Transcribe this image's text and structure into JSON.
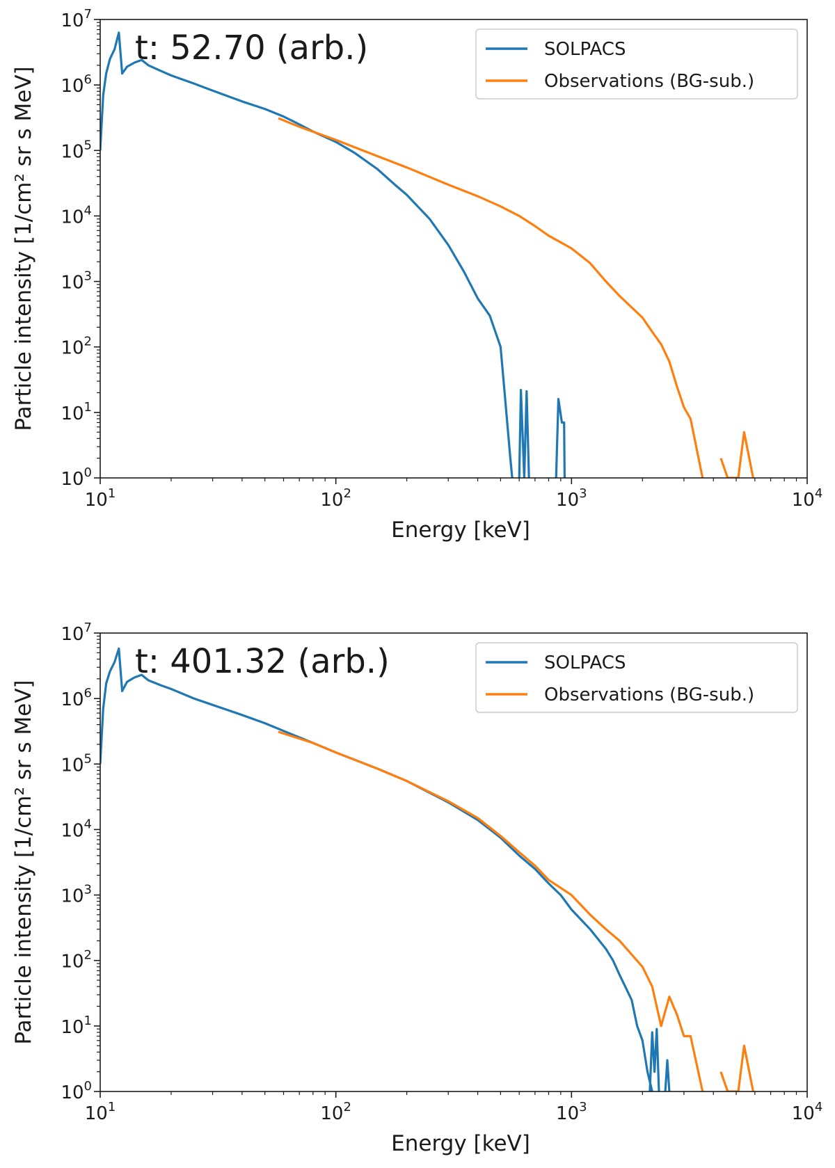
{
  "chart_data": [
    {
      "type": "line",
      "title": "",
      "annotation": "t: 52.70 (arb.)",
      "xlabel": "Energy [keV]",
      "ylabel": "Particle intensity [1/cm² sr s MeV]",
      "xscale": "log",
      "yscale": "log",
      "xlim": [
        10,
        10000
      ],
      "ylim": [
        1,
        10000000
      ],
      "x_ticks": [
        {
          "base": "10",
          "exp": "1"
        },
        {
          "base": "10",
          "exp": "2"
        },
        {
          "base": "10",
          "exp": "3"
        },
        {
          "base": "10",
          "exp": "4"
        }
      ],
      "y_ticks": [
        {
          "base": "10",
          "exp": "0"
        },
        {
          "base": "10",
          "exp": "1"
        },
        {
          "base": "10",
          "exp": "2"
        },
        {
          "base": "10",
          "exp": "3"
        },
        {
          "base": "10",
          "exp": "4"
        },
        {
          "base": "10",
          "exp": "5"
        },
        {
          "base": "10",
          "exp": "6"
        },
        {
          "base": "10",
          "exp": "7"
        }
      ],
      "grid": false,
      "legend": "top-right",
      "series": [
        {
          "name": "SOLPACS",
          "color": "#1f77b4",
          "segments": [
            [
              [
                10,
                100000
              ],
              [
                10.3,
                700000
              ],
              [
                10.6,
                1500000
              ],
              [
                11,
                2500000
              ],
              [
                11.5,
                3500000
              ],
              [
                12,
                6300000
              ],
              [
                12.4,
                1500000
              ],
              [
                13,
                1900000
              ],
              [
                14,
                2200000
              ],
              [
                15,
                2400000
              ],
              [
                16,
                2000000
              ],
              [
                18,
                1650000
              ],
              [
                20,
                1400000
              ],
              [
                25,
                1050000
              ],
              [
                30,
                820000
              ],
              [
                40,
                560000
              ],
              [
                50,
                430000
              ],
              [
                60,
                330000
              ],
              [
                70,
                250000
              ],
              [
                80,
                195000
              ],
              [
                100,
                135000
              ],
              [
                120,
                92000
              ],
              [
                150,
                52000
              ],
              [
                180,
                29000
              ],
              [
                200,
                21000
              ],
              [
                250,
                9000
              ],
              [
                300,
                3600
              ],
              [
                350,
                1400
              ],
              [
                400,
                550
              ],
              [
                450,
                300
              ],
              [
                500,
                100
              ],
              [
                520,
                20
              ],
              [
                550,
                2
              ],
              [
                560,
                1
              ]
            ],
            [
              [
                600,
                1
              ],
              [
                610,
                22
              ],
              [
                630,
                1
              ],
              [
                645,
                21
              ],
              [
                660,
                1
              ]
            ],
            [
              [
                860,
                1
              ],
              [
                880,
                16
              ],
              [
                910,
                7
              ],
              [
                930,
                7
              ],
              [
                935,
                1
              ]
            ]
          ]
        },
        {
          "name": "Observations (BG-sub.)",
          "color": "#ff7f0e",
          "segments": [
            [
              [
                57,
                310000
              ],
              [
                70,
                230000
              ],
              [
                100,
                145000
              ],
              [
                130,
                100000
              ],
              [
                200,
                55000
              ],
              [
                300,
                30000
              ],
              [
                400,
                20000
              ],
              [
                500,
                14000
              ],
              [
                600,
                10000
              ],
              [
                700,
                7000
              ],
              [
                800,
                5000
              ],
              [
                1000,
                3200
              ],
              [
                1200,
                1900
              ],
              [
                1400,
                1000
              ],
              [
                1600,
                600
              ],
              [
                2000,
                280
              ],
              [
                2200,
                170
              ],
              [
                2400,
                110
              ],
              [
                2600,
                60
              ],
              [
                2800,
                25
              ],
              [
                3000,
                12
              ],
              [
                3200,
                8
              ],
              [
                3600,
                1
              ]
            ],
            [
              [
                4300,
                2
              ],
              [
                4600,
                1
              ],
              [
                5100,
                1
              ],
              [
                5400,
                5
              ],
              [
                5900,
                1
              ]
            ]
          ]
        }
      ]
    },
    {
      "type": "line",
      "title": "",
      "annotation": "t: 401.32 (arb.)",
      "xlabel": "Energy [keV]",
      "ylabel": "Particle intensity [1/cm² sr s MeV]",
      "xscale": "log",
      "yscale": "log",
      "xlim": [
        10,
        10000
      ],
      "ylim": [
        1,
        10000000
      ],
      "x_ticks": [
        {
          "base": "10",
          "exp": "1"
        },
        {
          "base": "10",
          "exp": "2"
        },
        {
          "base": "10",
          "exp": "3"
        },
        {
          "base": "10",
          "exp": "4"
        }
      ],
      "y_ticks": [
        {
          "base": "10",
          "exp": "0"
        },
        {
          "base": "10",
          "exp": "1"
        },
        {
          "base": "10",
          "exp": "2"
        },
        {
          "base": "10",
          "exp": "3"
        },
        {
          "base": "10",
          "exp": "4"
        },
        {
          "base": "10",
          "exp": "5"
        },
        {
          "base": "10",
          "exp": "6"
        },
        {
          "base": "10",
          "exp": "7"
        }
      ],
      "grid": false,
      "legend": "top-right",
      "series": [
        {
          "name": "SOLPACS",
          "color": "#1f77b4",
          "segments": [
            [
              [
                10,
                100000
              ],
              [
                10.3,
                700000
              ],
              [
                10.6,
                1700000
              ],
              [
                11,
                2600000
              ],
              [
                11.5,
                3600000
              ],
              [
                12,
                5800000
              ],
              [
                12.4,
                1300000
              ],
              [
                13,
                1800000
              ],
              [
                14,
                2100000
              ],
              [
                15,
                2300000
              ],
              [
                16,
                1900000
              ],
              [
                18,
                1600000
              ],
              [
                20,
                1400000
              ],
              [
                25,
                1000000
              ],
              [
                30,
                800000
              ],
              [
                40,
                560000
              ],
              [
                50,
                420000
              ],
              [
                60,
                320000
              ],
              [
                80,
                210000
              ],
              [
                100,
                150000
              ],
              [
                150,
                85000
              ],
              [
                200,
                55000
              ],
              [
                300,
                26000
              ],
              [
                400,
                14000
              ],
              [
                500,
                7500
              ],
              [
                600,
                4000
              ],
              [
                700,
                2500
              ],
              [
                800,
                1500
              ],
              [
                900,
                1000
              ],
              [
                1000,
                600
              ],
              [
                1200,
                300
              ],
              [
                1400,
                150
              ],
              [
                1500,
                100
              ],
              [
                1600,
                60
              ],
              [
                1800,
                25
              ],
              [
                1900,
                10
              ],
              [
                2000,
                6
              ],
              [
                2100,
                2
              ],
              [
                2200,
                1
              ]
            ],
            [
              [
                2150,
                1
              ],
              [
                2200,
                8
              ],
              [
                2250,
                2
              ],
              [
                2300,
                9
              ],
              [
                2350,
                1
              ]
            ],
            [
              [
                2500,
                1
              ],
              [
                2550,
                3
              ],
              [
                2600,
                1
              ]
            ]
          ]
        },
        {
          "name": "Observations (BG-sub.)",
          "color": "#ff7f0e",
          "segments": [
            [
              [
                57,
                310000
              ],
              [
                80,
                210000
              ],
              [
                100,
                150000
              ],
              [
                150,
                85000
              ],
              [
                200,
                55000
              ],
              [
                300,
                27000
              ],
              [
                400,
                15000
              ],
              [
                500,
                8000
              ],
              [
                600,
                4500
              ],
              [
                700,
                2800
              ],
              [
                800,
                1700
              ],
              [
                1000,
                1000
              ],
              [
                1200,
                500
              ],
              [
                1400,
                300
              ],
              [
                1600,
                200
              ],
              [
                2000,
                80
              ],
              [
                2200,
                40
              ],
              [
                2400,
                10
              ],
              [
                2600,
                28
              ],
              [
                2800,
                15
              ],
              [
                3000,
                7
              ],
              [
                3200,
                7
              ],
              [
                3600,
                1
              ]
            ],
            [
              [
                4300,
                2
              ],
              [
                4600,
                1
              ],
              [
                5100,
                1
              ],
              [
                5400,
                5
              ],
              [
                5900,
                1
              ]
            ]
          ]
        }
      ]
    }
  ]
}
